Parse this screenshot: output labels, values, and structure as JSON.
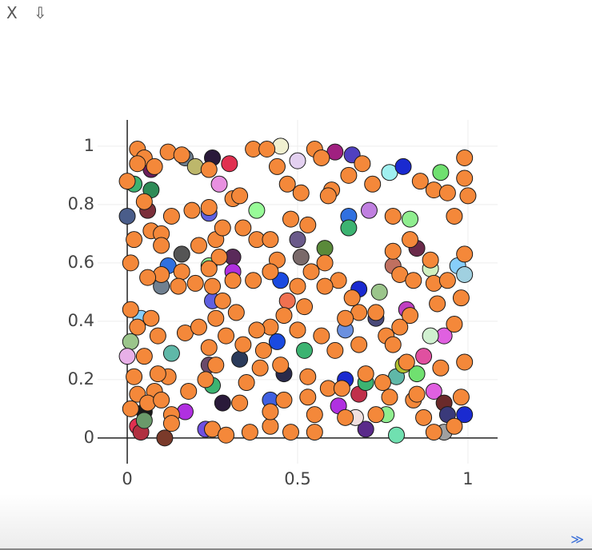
{
  "toolbar": {
    "close": "X",
    "download": "⇩"
  },
  "footer": {
    "expand": "≫"
  },
  "chart_data": {
    "type": "scatter",
    "xlim": [
      -0.087,
      1.087
    ],
    "ylim": [
      -0.088,
      1.09
    ],
    "xticks": [
      0,
      0.5,
      1
    ],
    "yticks": [
      0,
      0.2,
      0.4,
      0.6,
      0.8,
      1
    ],
    "grid": true,
    "series": [
      {
        "x": [
          0.0,
          0.02,
          0.06,
          0.07,
          0.07,
          0.16,
          0.17,
          0.2,
          0.25,
          0.3,
          0.27,
          0.24,
          0.38,
          0.31,
          0.31,
          0.24,
          0.45,
          0.5,
          0.61,
          0.66,
          0.77,
          0.81,
          0.92,
          0.65,
          0.65,
          0.71,
          0.83,
          0.85,
          0.97,
          0.99,
          0.89,
          0.78,
          0.74,
          0.68,
          0.58,
          0.51,
          0.5,
          0.45,
          0.47,
          0.12,
          0.1,
          0.25,
          0.04,
          0.01,
          0.0,
          0.13,
          0.24,
          0.33,
          0.44,
          0.52,
          0.64,
          0.73,
          0.82,
          0.87,
          0.93,
          0.89,
          0.79,
          0.81,
          0.85,
          0.9,
          0.93,
          0.99,
          0.94,
          0.93,
          0.79,
          0.76,
          0.7,
          0.67,
          0.62,
          0.64,
          0.68,
          0.7,
          0.46,
          0.42,
          0.28,
          0.25,
          0.17,
          0.05,
          0.03,
          0.04,
          0.05,
          0.11,
          0.23
        ],
        "y": [
          0.76,
          0.87,
          0.78,
          0.85,
          0.92,
          0.63,
          0.96,
          0.93,
          0.96,
          0.94,
          0.87,
          0.77,
          0.78,
          0.62,
          0.57,
          0.59,
          1.0,
          0.95,
          0.98,
          0.97,
          0.91,
          0.93,
          0.91,
          0.76,
          0.72,
          0.78,
          0.75,
          0.65,
          0.59,
          0.56,
          0.58,
          0.59,
          0.5,
          0.51,
          0.65,
          0.62,
          0.68,
          0.54,
          0.47,
          0.59,
          0.52,
          0.47,
          0.41,
          0.33,
          0.28,
          0.29,
          0.25,
          0.27,
          0.33,
          0.3,
          0.37,
          0.41,
          0.44,
          0.28,
          0.35,
          0.35,
          0.21,
          0.25,
          0.22,
          0.16,
          0.12,
          0.08,
          0.08,
          0.02,
          0.01,
          0.08,
          0.03,
          0.07,
          0.11,
          0.2,
          0.15,
          0.19,
          0.22,
          0.13,
          0.12,
          0.18,
          0.09,
          0.09,
          0.04,
          0.02,
          0.06,
          0.0,
          0.03
        ],
        "colors": [
          "#4a5d8a",
          "#3cb371",
          "#7b2f3a",
          "#2e8b57",
          "#6a1f5c",
          "#555555",
          "#708090",
          "#bdb76b",
          "#2a1a3a",
          "#e03050",
          "#e890e0",
          "#6060e0",
          "#98fb98",
          "#5a2a5a",
          "#b030e0",
          "#90ee90",
          "#f0f0d0",
          "#e3d0f0",
          "#a02080",
          "#5040c0",
          "#a0f0f0",
          "#1a2ad0",
          "#70e070",
          "#3070e0",
          "#3cb371",
          "#c080e0",
          "#90ee90",
          "#6a2a4a",
          "#87cefa",
          "#a0d0e0",
          "#d0f0c0",
          "#c07060",
          "#9bc58b",
          "#1a2ad0",
          "#5a8a3a",
          "#7a6a6a",
          "#6a5a8a",
          "#1a4ae0",
          "#f07050",
          "#3070e0",
          "#708090",
          "#6060e0",
          "#87cefa",
          "#9bc58b",
          "#e8b0e8",
          "#5fb8a8",
          "#6a4a6a",
          "#2a3a5a",
          "#1a4ae0",
          "#3cb371",
          "#6a90e0",
          "#4a4a7a",
          "#c040c0",
          "#e050a0",
          "#e060e0",
          "#d0f0d0",
          "#5fb8a8",
          "#b0c030",
          "#70e070",
          "#e060e0",
          "#6a2a2a",
          "#1a2ad0",
          "#3a3a7a",
          "#a0a0a0",
          "#70e0b0",
          "#90ee90",
          "#5a2a8a",
          "#f0e0e0",
          "#b030e0",
          "#1a2ad0",
          "#c0304a",
          "#3cb371",
          "#2a2a4a",
          "#4060e0",
          "#2a1a3a",
          "#3cb371",
          "#b030e0",
          "#1a1a1a",
          "#e03050",
          "#b03040",
          "#6a9a6a",
          "#7a3a2a",
          "#7050e0"
        ]
      },
      {
        "x": [
          0.03,
          0.05,
          0.12,
          0.16,
          0.0,
          0.03,
          0.08,
          0.05,
          0.07,
          0.1,
          0.13,
          0.19,
          0.24,
          0.24,
          0.31,
          0.33,
          0.37,
          0.41,
          0.44,
          0.47,
          0.51,
          0.55,
          0.57,
          0.6,
          0.65,
          0.69,
          0.72,
          0.78,
          0.86,
          0.9,
          0.94,
          0.96,
          0.99,
          0.99,
          1.0,
          0.99,
          0.98,
          0.96,
          0.91,
          0.89,
          0.83,
          0.78,
          0.8,
          0.84,
          0.9,
          0.94,
          0.83,
          0.8,
          0.76,
          0.73,
          0.68,
          0.66,
          0.62,
          0.58,
          0.54,
          0.5,
          0.52,
          0.5,
          0.46,
          0.42,
          0.38,
          0.32,
          0.28,
          0.25,
          0.27,
          0.26,
          0.28,
          0.34,
          0.38,
          0.42,
          0.44,
          0.42,
          0.37,
          0.31,
          0.24,
          0.2,
          0.16,
          0.1,
          0.06,
          0.01,
          0.01,
          0.03,
          0.09,
          0.17,
          0.21,
          0.24,
          0.26,
          0.26,
          0.23,
          0.18,
          0.12,
          0.09,
          0.08,
          0.03,
          0.01,
          0.06,
          0.13,
          0.13,
          0.25,
          0.29,
          0.36,
          0.42,
          0.46,
          0.53,
          0.55,
          0.53,
          0.59,
          0.63,
          0.7,
          0.75,
          0.78,
          0.82,
          0.84,
          0.87,
          0.9,
          0.96,
          0.98,
          0.99,
          0.92,
          0.85,
          0.77,
          0.73,
          0.64,
          0.55,
          0.48,
          0.42,
          0.33,
          0.35,
          0.39,
          0.45,
          0.4,
          0.34,
          0.29,
          0.15,
          0.21,
          0.1,
          0.02,
          0.05,
          0.07,
          0.02,
          0.1,
          0.59,
          0.48,
          0.53,
          0.58,
          0.64,
          0.61,
          0.57,
          0.68
        ],
        "y": [
          0.99,
          0.96,
          0.98,
          0.97,
          0.88,
          0.94,
          0.93,
          0.81,
          0.71,
          0.7,
          0.76,
          0.78,
          0.79,
          0.92,
          0.82,
          0.83,
          0.99,
          0.99,
          0.93,
          0.87,
          0.84,
          0.99,
          0.96,
          0.85,
          0.9,
          0.94,
          0.87,
          0.76,
          0.88,
          0.85,
          0.84,
          0.76,
          0.96,
          0.89,
          0.83,
          0.63,
          0.48,
          0.39,
          0.46,
          0.61,
          0.68,
          0.64,
          0.56,
          0.54,
          0.53,
          0.54,
          0.42,
          0.38,
          0.35,
          0.43,
          0.43,
          0.48,
          0.54,
          0.6,
          0.57,
          0.52,
          0.45,
          0.37,
          0.42,
          0.38,
          0.37,
          0.43,
          0.47,
          0.52,
          0.62,
          0.68,
          0.72,
          0.72,
          0.68,
          0.68,
          0.61,
          0.57,
          0.54,
          0.54,
          0.58,
          0.53,
          0.57,
          0.56,
          0.55,
          0.6,
          0.44,
          0.38,
          0.35,
          0.36,
          0.38,
          0.31,
          0.41,
          0.25,
          0.2,
          0.16,
          0.21,
          0.22,
          0.16,
          0.15,
          0.1,
          0.12,
          0.08,
          0.05,
          0.03,
          0.01,
          0.02,
          0.04,
          0.13,
          0.14,
          0.08,
          0.21,
          0.17,
          0.17,
          0.22,
          0.19,
          0.32,
          0.26,
          0.13,
          0.07,
          0.02,
          0.04,
          0.14,
          0.26,
          0.24,
          0.15,
          0.14,
          0.08,
          0.07,
          0.02,
          0.02,
          0.09,
          0.12,
          0.19,
          0.24,
          0.25,
          0.3,
          0.32,
          0.35,
          0.52,
          0.66,
          0.66,
          0.68,
          0.28,
          0.41,
          0.21,
          0.13,
          0.83,
          0.75,
          0.73,
          0.52,
          0.41,
          0.3,
          0.35,
          0.32
        ],
        "color": "#f4883a"
      }
    ]
  }
}
